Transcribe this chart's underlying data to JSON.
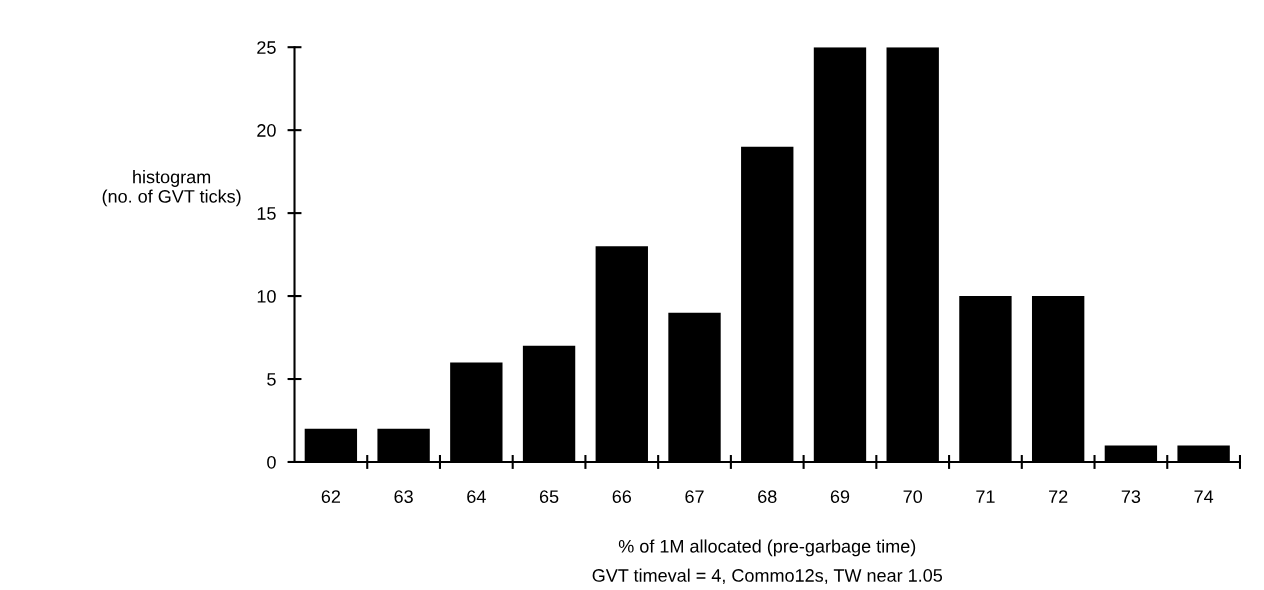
{
  "chart_data": {
    "type": "bar",
    "categories": [
      "62",
      "63",
      "64",
      "65",
      "66",
      "67",
      "68",
      "69",
      "70",
      "71",
      "72",
      "73",
      "74"
    ],
    "values": [
      2,
      2,
      6,
      7,
      13,
      9,
      19,
      25,
      25,
      10,
      10,
      1,
      1
    ],
    "color": "#000000",
    "ylim": [
      0,
      25
    ],
    "yticks": [
      0,
      5,
      10,
      15,
      20,
      25
    ],
    "ylabel": "histogram\n(no. of GVT ticks)",
    "xlabel": "% of 1M allocated (pre-garbage time)",
    "annotations": [
      "GVT timeval = 4, Commo12s, TW near 1.05"
    ],
    "grid": false
  }
}
